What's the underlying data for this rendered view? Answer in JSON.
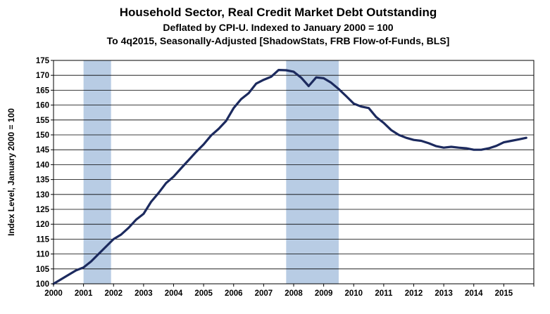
{
  "chart_data": {
    "type": "line",
    "title": "Household Sector, Real Credit Market Debt Outstanding",
    "subtitle_lines": [
      "Deflated by CPI-U. Indexed to January 2000 = 100",
      "To 4q2015, Seasonally-Adjusted [ShadowStats, FRB Flow-of-Funds, BLS]"
    ],
    "xlabel": "",
    "ylabel": "Index Level, January 2000 = 100",
    "ylim": [
      100,
      175
    ],
    "xlim": [
      2000,
      2016
    ],
    "y_ticks": [
      "100",
      "105",
      "110",
      "115",
      "120",
      "125",
      "130",
      "135",
      "140",
      "145",
      "150",
      "155",
      "160",
      "165",
      "170",
      "175"
    ],
    "x_ticks": [
      "2000",
      "2001",
      "2002",
      "2003",
      "2004",
      "2005",
      "2006",
      "2007",
      "2008",
      "2009",
      "2010",
      "2011",
      "2012",
      "2013",
      "2014",
      "2015"
    ],
    "grid": true,
    "line_color": "#1c2a5e",
    "recession_color": "#b8cce4",
    "recessions": [
      [
        2001.0,
        2001.917
      ],
      [
        2007.75,
        2009.5
      ]
    ],
    "series": [
      {
        "x": [
          2000.0,
          2000.25,
          2000.5,
          2000.75,
          2001.0,
          2001.25,
          2001.5,
          2001.75,
          2002.0,
          2002.25,
          2002.5,
          2002.75,
          2003.0,
          2003.25,
          2003.5,
          2003.75,
          2004.0,
          2004.25,
          2004.5,
          2004.75,
          2005.0,
          2005.25,
          2005.5,
          2005.75,
          2006.0,
          2006.25,
          2006.5,
          2006.75,
          2007.0,
          2007.25,
          2007.5,
          2007.75,
          2008.0,
          2008.25,
          2008.5,
          2008.75,
          2009.0,
          2009.25,
          2009.5,
          2009.75,
          2010.0,
          2010.25,
          2010.5,
          2010.75,
          2011.0,
          2011.25,
          2011.5,
          2011.75,
          2012.0,
          2012.25,
          2012.5,
          2012.75,
          2013.0,
          2013.25,
          2013.5,
          2013.75,
          2014.0,
          2014.25,
          2014.5,
          2014.75,
          2015.0,
          2015.25,
          2015.5,
          2015.75
        ],
        "y": [
          100.0,
          101.5,
          103.0,
          104.5,
          105.5,
          107.5,
          110.0,
          112.5,
          115.0,
          116.5,
          118.8,
          121.5,
          123.5,
          127.5,
          130.5,
          133.8,
          136.0,
          138.8,
          141.5,
          144.3,
          146.8,
          149.8,
          152.0,
          154.7,
          159.0,
          162.0,
          164.0,
          167.2,
          168.5,
          169.5,
          171.8,
          171.7,
          171.2,
          169.2,
          166.4,
          169.3,
          169.0,
          167.5,
          165.4,
          163.0,
          160.5,
          159.5,
          159.0,
          156.0,
          154.0,
          151.6,
          150.0,
          149.0,
          148.3,
          148.0,
          147.2,
          146.2,
          145.7,
          146.0,
          145.7,
          145.5,
          145.0,
          145.0,
          145.5,
          146.3,
          147.5,
          148.0,
          148.5,
          149.0
        ]
      }
    ]
  }
}
